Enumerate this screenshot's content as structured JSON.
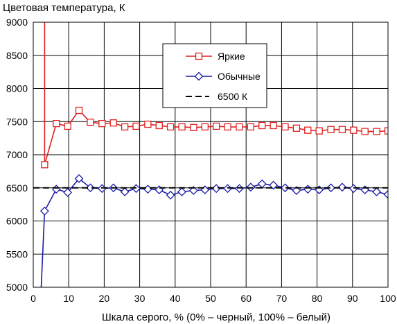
{
  "chart_data": {
    "type": "line",
    "ylabel": "Цветовая температура, К",
    "xlabel": "Шкала серого, % (0% – черный, 100% – белый)",
    "xlim": [
      0,
      100
    ],
    "ylim": [
      5000,
      9000
    ],
    "x_ticks": [
      0,
      10,
      20,
      30,
      40,
      50,
      60,
      70,
      80,
      90,
      100
    ],
    "y_ticks": [
      5000,
      5500,
      6000,
      6500,
      7000,
      7500,
      8000,
      8500,
      9000
    ],
    "x_tick_labels": [
      "0",
      "10",
      "20",
      "30",
      "40",
      "50",
      "60",
      "70",
      "80",
      "90",
      "100"
    ],
    "y_tick_labels": [
      "5000",
      "5500",
      "6000",
      "6500",
      "7000",
      "7500",
      "8000",
      "8500",
      "9000"
    ],
    "grid": true,
    "legend_position": "top-right",
    "x": [
      3.2,
      6.5,
      9.7,
      12.9,
      16.1,
      19.4,
      22.6,
      25.8,
      29.0,
      32.3,
      35.5,
      38.7,
      41.9,
      45.2,
      48.4,
      51.6,
      54.8,
      58.1,
      61.3,
      64.5,
      67.7,
      71.0,
      74.2,
      77.4,
      80.6,
      83.9,
      87.1,
      90.3,
      93.5,
      96.8,
      100
    ],
    "series": [
      {
        "name": "Яркие",
        "color": "#e02020",
        "marker": "square",
        "lead_in": [
          [
            3.2,
            9000
          ]
        ],
        "values": [
          6850,
          7470,
          7430,
          7670,
          7490,
          7470,
          7480,
          7420,
          7430,
          7460,
          7440,
          7420,
          7420,
          7410,
          7420,
          7430,
          7420,
          7420,
          7420,
          7440,
          7440,
          7420,
          7400,
          7370,
          7360,
          7380,
          7380,
          7370,
          7350,
          7350,
          7360
        ]
      },
      {
        "name": "Обычные",
        "color": "#1a1aa6",
        "marker": "diamond",
        "lead_in": [
          [
            2.2,
            4950
          ]
        ],
        "values": [
          6150,
          6480,
          6430,
          6640,
          6500,
          6490,
          6500,
          6440,
          6490,
          6480,
          6470,
          6390,
          6440,
          6460,
          6470,
          6490,
          6490,
          6490,
          6510,
          6560,
          6540,
          6500,
          6460,
          6480,
          6470,
          6500,
          6510,
          6490,
          6470,
          6440,
          6400
        ]
      },
      {
        "name": "6500 К",
        "color": "#000000",
        "style": "dashed",
        "reference_value": 6500
      }
    ]
  }
}
